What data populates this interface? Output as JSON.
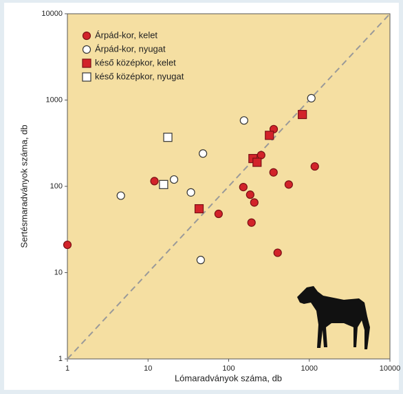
{
  "chart_data": {
    "type": "scatter",
    "x_label": "Lómaradványok száma, db",
    "y_label": "Sertésmaradványok száma, db",
    "log_x": true,
    "log_y": true,
    "diagonal": true,
    "legend": "upper-left",
    "xlim": [
      1,
      10000
    ],
    "ylim": [
      1,
      10000
    ],
    "xticks": [
      1,
      10,
      100,
      1000,
      10000
    ],
    "yticks": [
      1,
      10,
      100,
      1000,
      10000
    ],
    "series": [
      {
        "name": "Árpád-kor, kelet",
        "marker": "circle",
        "color": "#d2232a",
        "x": [
          1,
          12,
          75,
          152,
          185,
          208,
          192,
          253,
          362,
          360,
          556,
          405,
          1170
        ],
        "values": [
          21,
          115,
          48,
          98,
          80,
          65,
          38,
          230,
          460,
          145,
          105,
          17,
          170
        ]
      },
      {
        "name": "Árpád-kor, nyugat",
        "marker": "circle",
        "color": "#ffffff",
        "x": [
          4.6,
          21,
          34,
          48,
          45,
          155,
          1060
        ],
        "values": [
          78,
          120,
          85,
          240,
          14,
          580,
          1050
        ]
      },
      {
        "name": "késő középkor, kelet",
        "marker": "square",
        "color": "#d2232a",
        "x": [
          43,
          200,
          225,
          320,
          820
        ],
        "values": [
          55,
          210,
          190,
          390,
          680
        ]
      },
      {
        "name": "késő középkor, nyugat",
        "marker": "square",
        "color": "#ffffff",
        "x": [
          17.6,
          15.6
        ],
        "values": [
          370,
          105
        ]
      }
    ]
  }
}
